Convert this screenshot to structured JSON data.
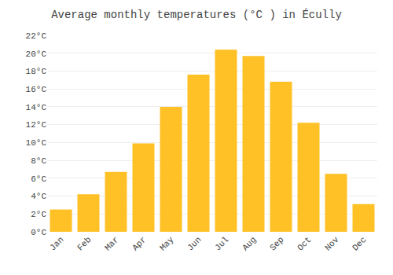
{
  "chart_data": {
    "type": "bar",
    "title": "Average monthly temperatures (°C ) in Écully",
    "categories": [
      "Jan",
      "Feb",
      "Mar",
      "Apr",
      "May",
      "Jun",
      "Jul",
      "Aug",
      "Sep",
      "Oct",
      "Nov",
      "Dec"
    ],
    "values": [
      2.5,
      4.2,
      6.7,
      9.9,
      14.0,
      17.6,
      20.4,
      19.7,
      16.8,
      12.2,
      6.5,
      3.1
    ],
    "color": "#FFC125",
    "ylim": [
      0,
      22
    ],
    "yticks": [
      {
        "value": 0,
        "label": "0°C"
      },
      {
        "value": 2,
        "label": "2°C"
      },
      {
        "value": 4,
        "label": "4°C"
      },
      {
        "value": 6,
        "label": "6°C"
      },
      {
        "value": 8,
        "label": "8°C"
      },
      {
        "value": 10,
        "label": "10°C"
      },
      {
        "value": 12,
        "label": "12°C"
      },
      {
        "value": 14,
        "label": "14°C"
      },
      {
        "value": 16,
        "label": "16°C"
      },
      {
        "value": 18,
        "label": "18°C"
      },
      {
        "value": 20,
        "label": "20°C"
      },
      {
        "value": 22,
        "label": "22°C"
      }
    ],
    "grid": true
  }
}
